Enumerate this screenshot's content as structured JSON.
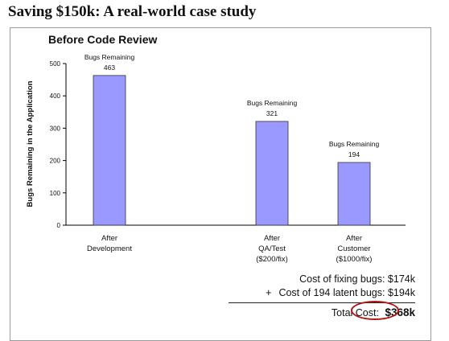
{
  "slide": {
    "title": "Saving $150k: A real-world case study"
  },
  "chart_data": {
    "type": "bar",
    "title": "Before Code Review",
    "ylabel": "Bugs Remaining in the Application",
    "xlabel": "",
    "ylim": [
      0,
      500
    ],
    "yticks": [
      0,
      100,
      200,
      300,
      400,
      500
    ],
    "grid": false,
    "categories": [
      [
        "After",
        "Development"
      ],
      [
        "After",
        "QA/Test",
        "($200/fix)"
      ],
      [
        "After",
        "Customer",
        "($1000/fix)"
      ]
    ],
    "values": [
      463,
      321,
      194
    ],
    "bar_label_text": "Bugs Remaining",
    "bar_color": "#9999ff"
  },
  "costs": {
    "fixing": "Cost of fixing bugs: $174k",
    "plus": "+",
    "latent": "Cost of 194 latent bugs: $194k",
    "total_label": "Total Cost:",
    "total_value": "$368k",
    "highlight_color": "#b01818"
  }
}
